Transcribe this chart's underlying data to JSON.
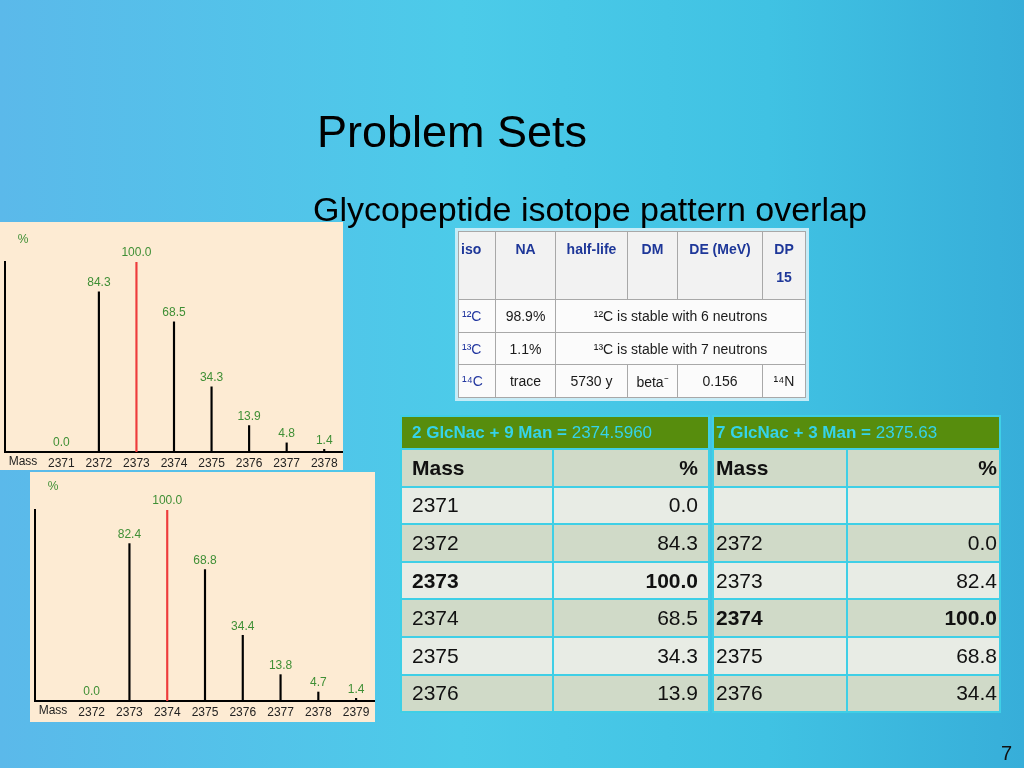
{
  "chart_data": [
    {
      "type": "other",
      "title": "Problem Sets",
      "subtitle": "Glycopeptide isotope pattern overlap",
      "annotations": [
        "7"
      ]
    },
    {
      "type": "bar",
      "xlabel": "Mass",
      "ylabel": "%",
      "x": [
        2371,
        2372,
        2373,
        2374,
        2375,
        2376,
        2377,
        2378
      ],
      "values": [
        0.0,
        84.3,
        100.0,
        68.5,
        34.3,
        13.9,
        4.8,
        1.4
      ],
      "value_labels": [
        "0.0",
        "84.3",
        "100.0",
        "68.5",
        "34.3",
        "13.9",
        "4.8",
        "1.4"
      ],
      "colors": [
        "#000000",
        "#000000",
        "#ee3b3b",
        "#000000",
        "#000000",
        "#000000",
        "#000000",
        "#000000"
      ],
      "xlim": [
        2369.5,
        2378.5
      ],
      "xticks": [
        2371,
        2372,
        2373,
        2374,
        2375,
        2376,
        2377,
        2378
      ],
      "ylim": [
        0,
        100
      ],
      "tick_labels": "x"
    },
    {
      "type": "other",
      "cell_labels": [
        [
          "iso",
          "NA",
          "half-life",
          "DM",
          "DE (MeV)",
          "DP\n15"
        ],
        [
          "¹²C",
          "98.9%",
          "¹²C is stable with 6 neutrons"
        ],
        [
          "¹³C",
          "1.1%",
          "¹³C is stable with 7 neutrons"
        ],
        [
          "¹⁴C",
          "trace",
          "5730 y",
          "beta⁻",
          "0.156",
          "¹⁴N"
        ]
      ]
    },
    {
      "type": "heatmap",
      "title": "2 GlcNac + 9 Man = 2374.5960",
      "ylabel": "Mass",
      "categories": [
        "%"
      ],
      "y_categories": [
        "2371",
        "2372",
        "2373",
        "2374",
        "2375",
        "2376"
      ],
      "cells": [
        [
          0.0
        ],
        [
          84.3
        ],
        [
          100.0
        ],
        [
          68.5
        ],
        [
          34.3
        ],
        [
          13.9
        ]
      ],
      "cell_labels": [
        [
          "0.0"
        ],
        [
          "84.3"
        ],
        [
          "100.0"
        ],
        [
          "68.5"
        ],
        [
          "34.3"
        ],
        [
          "13.9"
        ]
      ]
    },
    {
      "type": "heatmap",
      "title": "7 GlcNac + 3 Man = 2375.63",
      "ylabel": "Mass",
      "categories": [
        "%"
      ],
      "y_categories": [
        "2372",
        "2373",
        "2374",
        "2375",
        "2376"
      ],
      "cells": [
        [
          0.0
        ],
        [
          82.4
        ],
        [
          100.0
        ],
        [
          68.8
        ],
        [
          34.4
        ]
      ],
      "cell_labels": [
        [
          "0.0"
        ],
        [
          "82.4"
        ],
        [
          "100.0"
        ],
        [
          "68.8"
        ],
        [
          "34.4"
        ]
      ]
    },
    {
      "type": "bar",
      "xlabel": "Mass",
      "ylabel": "%",
      "x": [
        2372,
        2373,
        2374,
        2375,
        2376,
        2377,
        2378,
        2379
      ],
      "values": [
        0.0,
        82.4,
        100.0,
        68.8,
        34.4,
        13.8,
        4.7,
        1.4
      ],
      "value_labels": [
        "0.0",
        "82.4",
        "100.0",
        "68.8",
        "34.4",
        "13.8",
        "4.7",
        "1.4"
      ],
      "colors": [
        "#000000",
        "#000000",
        "#ee3b3b",
        "#000000",
        "#000000",
        "#000000",
        "#000000",
        "#000000"
      ],
      "xlim": [
        2370.5,
        2379.5
      ],
      "xticks": [
        2372,
        2373,
        2374,
        2375,
        2376,
        2377,
        2378,
        2379
      ],
      "ylim": [
        0,
        100
      ],
      "tick_labels": "x"
    }
  ]
}
